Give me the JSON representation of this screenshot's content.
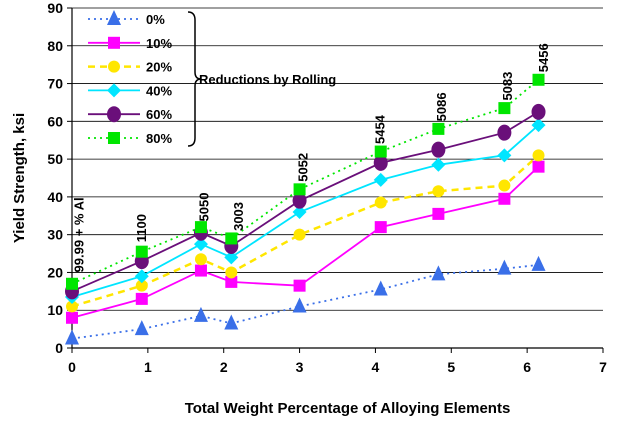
{
  "chart_data": {
    "type": "line",
    "xlabel": "Total Weight Percentage of Alloying Elements",
    "ylabel": "Yield Strength, ksi",
    "xlim": [
      0,
      7
    ],
    "ylim": [
      0,
      90
    ],
    "x_ticks": [
      "0",
      "1",
      "2",
      "3",
      "4",
      "5",
      "6",
      "7"
    ],
    "y_ticks": [
      "0",
      "10",
      "20",
      "30",
      "40",
      "50",
      "60",
      "70",
      "80",
      "90"
    ],
    "grid": "horizontal",
    "legend_position": "top-left",
    "legend_brace_label": "Reductions by Rolling",
    "series": [
      {
        "name": "0%",
        "color": "#3a6fe8",
        "dash": "dotted",
        "marker": "triangle",
        "points": [
          [
            0,
            2.5
          ],
          [
            0.92,
            5
          ],
          [
            1.7,
            8.5
          ],
          [
            2.1,
            6.5
          ],
          [
            3.0,
            11
          ],
          [
            4.07,
            15.5
          ],
          [
            4.83,
            19.5
          ],
          [
            5.7,
            21
          ],
          [
            6.15,
            22
          ]
        ]
      },
      {
        "name": "10%",
        "color": "#ff00ff",
        "dash": "solid",
        "marker": "square",
        "points": [
          [
            0,
            8
          ],
          [
            0.92,
            13
          ],
          [
            1.7,
            20.5
          ],
          [
            2.1,
            17.5
          ],
          [
            3.0,
            16.5
          ],
          [
            4.07,
            32
          ],
          [
            4.83,
            35.5
          ],
          [
            5.7,
            39.5
          ],
          [
            6.15,
            48
          ]
        ]
      },
      {
        "name": "20%",
        "color": "#ffe600",
        "dash": "dashed",
        "marker": "circle",
        "points": [
          [
            0,
            11
          ],
          [
            0.92,
            16.5
          ],
          [
            1.7,
            23.5
          ],
          [
            2.1,
            20
          ],
          [
            3.0,
            30
          ],
          [
            4.07,
            38.5
          ],
          [
            4.83,
            41.5
          ],
          [
            5.7,
            43
          ],
          [
            6.15,
            51
          ]
        ]
      },
      {
        "name": "40%",
        "color": "#00e5ff",
        "dash": "solid",
        "marker": "diamond",
        "points": [
          [
            0,
            13.5
          ],
          [
            0.92,
            19
          ],
          [
            1.7,
            27.5
          ],
          [
            2.1,
            24
          ],
          [
            3.0,
            36
          ],
          [
            4.07,
            44.5
          ],
          [
            4.83,
            48.5
          ],
          [
            5.7,
            51
          ],
          [
            6.15,
            59
          ]
        ]
      },
      {
        "name": "60%",
        "color": "#6a0f7a",
        "dash": "solid",
        "marker": "ellipse",
        "points": [
          [
            0,
            15
          ],
          [
            0.92,
            23
          ],
          [
            1.7,
            30.5
          ],
          [
            2.1,
            27
          ],
          [
            3.0,
            39
          ],
          [
            4.07,
            49
          ],
          [
            4.83,
            52.5
          ],
          [
            5.7,
            57
          ],
          [
            6.15,
            62.5
          ]
        ]
      },
      {
        "name": "80%",
        "color": "#00e600",
        "dash": "dotted",
        "marker": "square",
        "points": [
          [
            0,
            17
          ],
          [
            0.92,
            25.5
          ],
          [
            1.7,
            32
          ],
          [
            2.1,
            29
          ],
          [
            3.0,
            42
          ],
          [
            4.07,
            52
          ],
          [
            4.83,
            58
          ],
          [
            5.7,
            63.5
          ],
          [
            6.15,
            71
          ]
        ]
      }
    ],
    "annotations": [
      {
        "text": "99.99 + % Al",
        "x": 0.1,
        "y": 20
      },
      {
        "text": "1100",
        "x": 0.92,
        "y": 28
      },
      {
        "text": "5050",
        "x": 1.75,
        "y": 33.5
      },
      {
        "text": "3003",
        "x": 2.2,
        "y": 31
      },
      {
        "text": "5052",
        "x": 3.05,
        "y": 44
      },
      {
        "text": "5454",
        "x": 4.07,
        "y": 54
      },
      {
        "text": "5086",
        "x": 4.88,
        "y": 60
      },
      {
        "text": "5083",
        "x": 5.75,
        "y": 65.5
      },
      {
        "text": "5456",
        "x": 6.22,
        "y": 73
      }
    ]
  }
}
